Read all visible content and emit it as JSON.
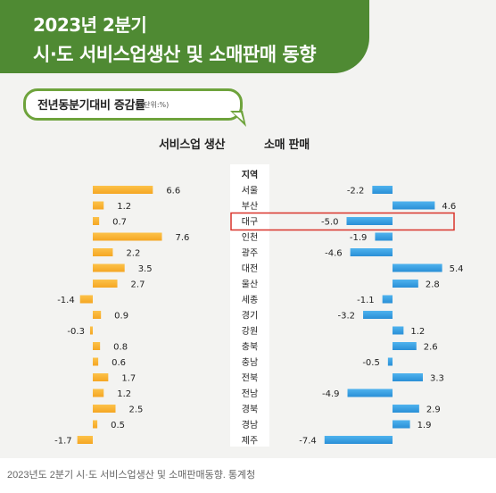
{
  "header": {
    "title_line1": "2023년 2분기",
    "title_line2": "시·도 서비스업생산 및 소매판매 동향"
  },
  "subheader": {
    "label": "전년동분기대비 증감률",
    "unit": "(단위:%)"
  },
  "caption": "2023년도 2분기 시·도 서비스업생산 및 소매판매동향. 통계청",
  "colors": {
    "banner": "#4f8a33",
    "bubble_border": "#6ea33c",
    "service_bar": "#f5a623",
    "retail_bar": "#2a8fd6",
    "highlight": "#d9342b"
  },
  "chart_data": {
    "type": "bar",
    "category_header": "지역",
    "categories": [
      "서울",
      "부산",
      "대구",
      "인천",
      "광주",
      "대전",
      "울산",
      "세종",
      "경기",
      "강원",
      "충북",
      "충남",
      "전북",
      "전남",
      "경북",
      "경남",
      "제주"
    ],
    "series": [
      {
        "name": "서비스업 생산",
        "values": [
          6.6,
          1.2,
          0.7,
          7.6,
          2.2,
          3.5,
          2.7,
          -1.4,
          0.9,
          -0.3,
          0.8,
          0.6,
          1.7,
          1.2,
          2.5,
          0.5,
          -1.7
        ]
      },
      {
        "name": "소매 판매",
        "values": [
          -2.2,
          4.6,
          -5.0,
          -1.9,
          -4.6,
          5.4,
          2.8,
          -1.1,
          -3.2,
          1.2,
          2.6,
          -0.5,
          3.3,
          -4.9,
          2.9,
          1.9,
          -7.4
        ]
      }
    ],
    "value_labels": {
      "service": [
        "6.6",
        "1.2",
        "0.7",
        "7.6",
        "2.2",
        "3.5",
        "2.7",
        "-1.4",
        "0.9",
        "-0.3",
        "0.8",
        "0.6",
        "1.7",
        "1.2",
        "2.5",
        "0.5",
        "-1.7"
      ],
      "retail": [
        "-2.2",
        "4.6",
        "-5.0",
        "-1.9",
        "-4.6",
        "5.4",
        "2.8",
        "-1.1",
        "-3.2",
        "1.2",
        "2.6",
        "-0.5",
        "3.3",
        "-4.9",
        "2.9",
        "1.9",
        "-7.4"
      ]
    },
    "highlighted_category": "대구"
  }
}
